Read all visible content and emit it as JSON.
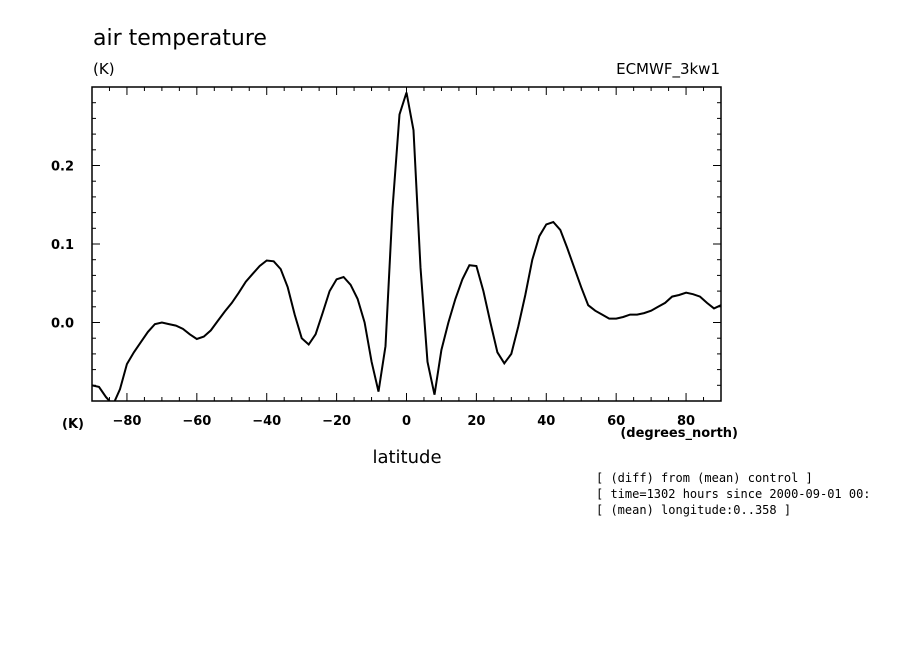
{
  "chart_data": {
    "type": "line",
    "title": "air temperature",
    "units_top": "(K)",
    "units_bottom": "(K)",
    "dataset": "ECMWF_3kw1",
    "xlabel": "latitude",
    "xunits": "(degrees_north)",
    "xlim": [
      -90,
      90
    ],
    "ylim": [
      -0.1,
      0.3
    ],
    "xticks": [
      -80,
      -60,
      -40,
      -20,
      0,
      20,
      40,
      60,
      80
    ],
    "yticks": [
      0.0,
      0.1,
      0.2
    ],
    "xtick_labels": [
      "−80",
      "−60",
      "−40",
      "−20",
      "0",
      "20",
      "40",
      "60",
      "80"
    ],
    "ytick_labels": [
      "0.0",
      "0.1",
      "0.2"
    ],
    "grid": false,
    "series": [
      {
        "x": [
          -90,
          -88,
          -86,
          -84,
          -82,
          -80,
          -78,
          -76,
          -74,
          -72,
          -70,
          -68,
          -66,
          -64,
          -62,
          -60,
          -58,
          -56,
          -54,
          -52,
          -50,
          -48,
          -46,
          -44,
          -42,
          -40,
          -38,
          -36,
          -34,
          -32,
          -30,
          -28,
          -26,
          -24,
          -22,
          -20,
          -18,
          -16,
          -14,
          -12,
          -10,
          -8,
          -6,
          -4,
          -2,
          0,
          2,
          4,
          6,
          8,
          10,
          12,
          14,
          16,
          18,
          20,
          22,
          24,
          26,
          28,
          30,
          32,
          34,
          36,
          38,
          40,
          42,
          44,
          46,
          48,
          50,
          52,
          54,
          56,
          58,
          60,
          62,
          64,
          66,
          68,
          70,
          72,
          74,
          76,
          78,
          80,
          82,
          84,
          86,
          88,
          90
        ],
        "y": [
          -0.08,
          -0.082,
          -0.095,
          -0.105,
          -0.085,
          -0.053,
          -0.038,
          -0.025,
          -0.012,
          -0.002,
          0.0,
          -0.002,
          -0.004,
          -0.008,
          -0.015,
          -0.021,
          -0.018,
          -0.01,
          0.002,
          0.014,
          0.025,
          0.038,
          0.052,
          0.062,
          0.072,
          0.079,
          0.078,
          0.068,
          0.045,
          0.01,
          -0.02,
          -0.028,
          -0.015,
          0.012,
          0.04,
          0.055,
          0.058,
          0.048,
          0.03,
          0.0,
          -0.05,
          -0.088,
          -0.03,
          0.145,
          0.265,
          0.293,
          0.245,
          0.07,
          -0.05,
          -0.092,
          -0.035,
          0.0,
          0.03,
          0.055,
          0.073,
          0.072,
          0.04,
          0.0,
          -0.038,
          -0.052,
          -0.04,
          -0.005,
          0.035,
          0.08,
          0.11,
          0.125,
          0.128,
          0.118,
          0.095,
          0.07,
          0.045,
          0.022,
          0.015,
          0.01,
          0.005,
          0.005,
          0.007,
          0.01,
          0.01,
          0.012,
          0.015,
          0.02,
          0.025,
          0.033,
          0.035,
          0.038,
          0.036,
          0.033,
          0.025,
          0.018,
          0.022
        ]
      }
    ]
  },
  "annotations": [
    "[ (diff) from (mean) control ]",
    "[ time=1302 hours since 2000-09-01 00:",
    "[ (mean) longitude:0..358 ]"
  ]
}
